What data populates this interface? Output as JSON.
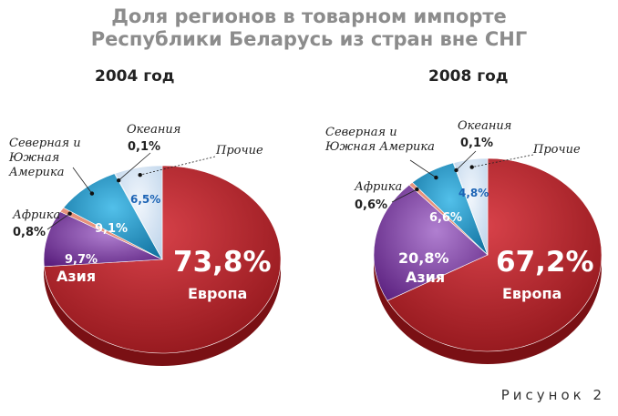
{
  "title": {
    "line1": "Доля регионов в товарном импорте",
    "line2": "Республики Беларусь из стран вне СНГ"
  },
  "figure_label": "Рисунок 2",
  "colors": {
    "europe": "#b8252b",
    "asia": "#7a3a9c",
    "africa": "#e7927c",
    "americas": "#1c97cc",
    "oceania": "#7fb2d6",
    "other": "#d7e6f4"
  },
  "chart_data": [
    {
      "type": "pie",
      "title": "2004 год",
      "slices": [
        {
          "label": "Европа",
          "value": 73.8,
          "display": "73,8%"
        },
        {
          "label": "Азия",
          "value": 9.7,
          "display": "9,7%"
        },
        {
          "label": "Африка",
          "value": 0.8,
          "display": "0,8%"
        },
        {
          "label": "Северная и Южная Америка",
          "value": 9.1,
          "display": "9,1%"
        },
        {
          "label": "Океания",
          "value": 0.1,
          "display": "0,1%"
        },
        {
          "label": "Прочие",
          "value": 6.5,
          "display": "6,5%"
        }
      ]
    },
    {
      "type": "pie",
      "title": "2008 год",
      "slices": [
        {
          "label": "Европа",
          "value": 67.2,
          "display": "67,2%"
        },
        {
          "label": "Азия",
          "value": 20.8,
          "display": "20,8%"
        },
        {
          "label": "Африка",
          "value": 0.6,
          "display": "0,6%"
        },
        {
          "label": "Северная и Южная Америка",
          "value": 6.6,
          "display": "6,6%"
        },
        {
          "label": "Океания",
          "value": 0.1,
          "display": "0,1%"
        },
        {
          "label": "Прочие",
          "value": 4.8,
          "display": "4,8%"
        }
      ]
    }
  ]
}
